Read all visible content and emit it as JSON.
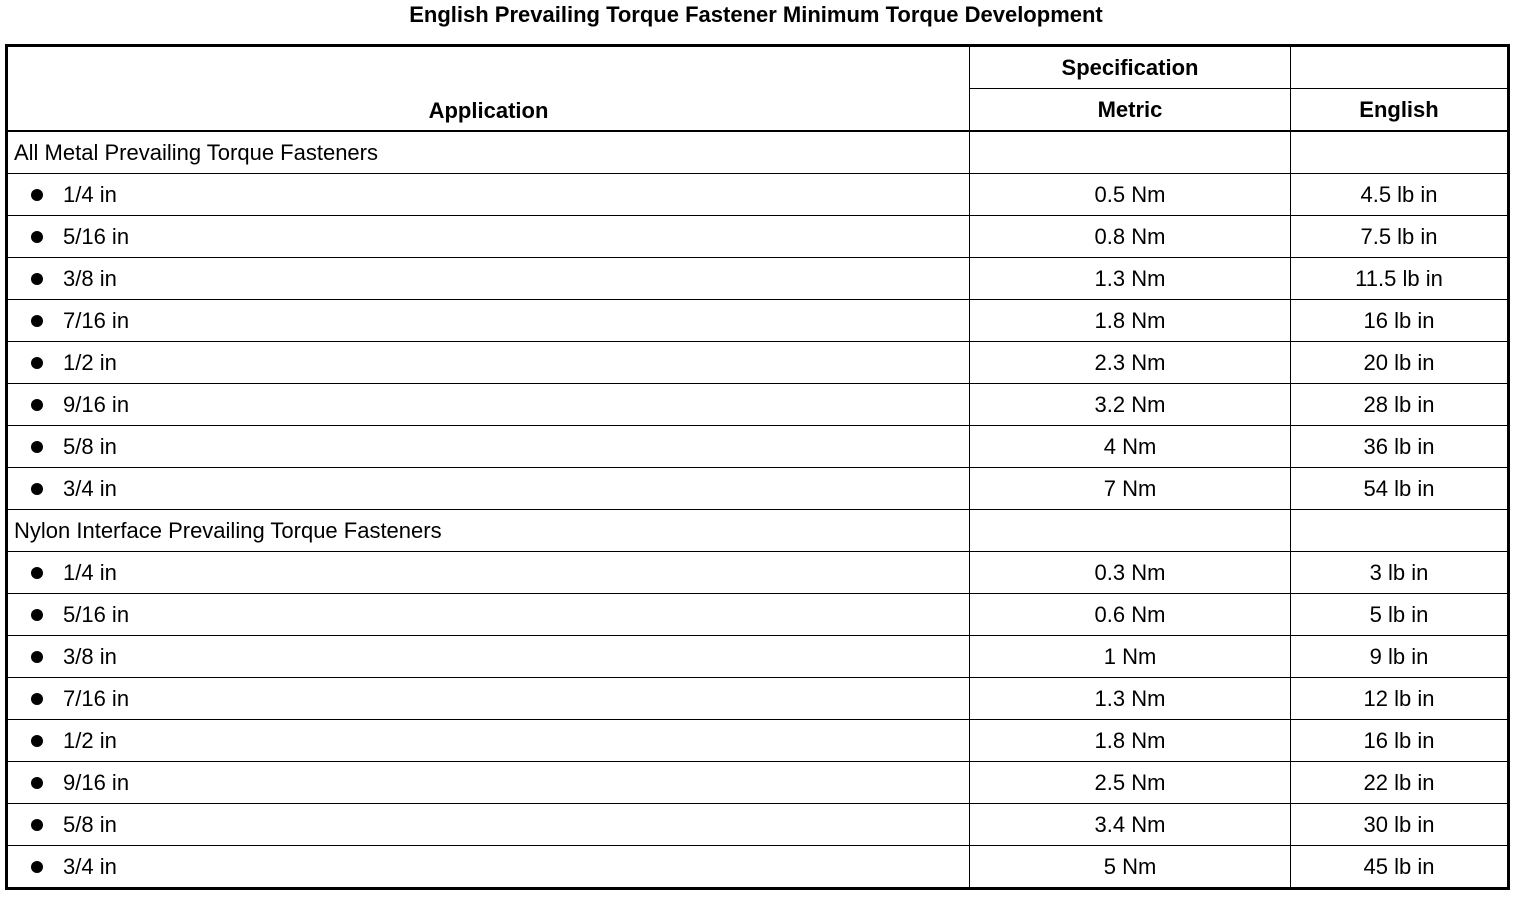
{
  "title": "English Prevailing Torque Fastener Minimum Torque Development",
  "headers": {
    "application": "Application",
    "specification": "Specification",
    "metric": "Metric",
    "english": "English"
  },
  "groups": [
    {
      "label": "All Metal Prevailing Torque Fasteners",
      "rows": [
        {
          "size": "1/4 in",
          "metric": "0.5 Nm",
          "english": "4.5 lb in"
        },
        {
          "size": "5/16 in",
          "metric": "0.8 Nm",
          "english": "7.5 lb in"
        },
        {
          "size": "3/8 in",
          "metric": "1.3 Nm",
          "english": "11.5 lb in"
        },
        {
          "size": "7/16 in",
          "metric": "1.8 Nm",
          "english": "16 lb in"
        },
        {
          "size": "1/2 in",
          "metric": "2.3 Nm",
          "english": "20 lb in"
        },
        {
          "size": "9/16 in",
          "metric": "3.2 Nm",
          "english": "28 lb in"
        },
        {
          "size": "5/8 in",
          "metric": "4 Nm",
          "english": "36 lb in"
        },
        {
          "size": "3/4 in",
          "metric": "7 Nm",
          "english": "54 lb in"
        }
      ]
    },
    {
      "label": "Nylon Interface Prevailing Torque Fasteners",
      "rows": [
        {
          "size": "1/4 in",
          "metric": "0.3 Nm",
          "english": "3 lb in"
        },
        {
          "size": "5/16 in",
          "metric": "0.6 Nm",
          "english": "5 lb in"
        },
        {
          "size": "3/8 in",
          "metric": "1 Nm",
          "english": "9 lb in"
        },
        {
          "size": "7/16 in",
          "metric": "1.3 Nm",
          "english": "12 lb in"
        },
        {
          "size": "1/2 in",
          "metric": "1.8 Nm",
          "english": "16 lb in"
        },
        {
          "size": "9/16 in",
          "metric": "2.5 Nm",
          "english": "22 lb in"
        },
        {
          "size": "5/8 in",
          "metric": "3.4 Nm",
          "english": "30 lb in"
        },
        {
          "size": "3/4 in",
          "metric": "5 Nm",
          "english": "45 lb in"
        }
      ]
    }
  ]
}
